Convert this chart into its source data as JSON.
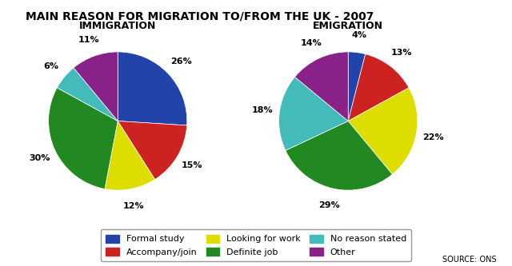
{
  "title": "MAIN REASON FOR MIGRATION TO/FROM THE UK - 2007",
  "immigration_title": "IMMIGRATION",
  "emigration_title": "EMIGRATION",
  "source": "SOURCE: ONS",
  "categories": [
    "Formal study",
    "Accompany/join",
    "Looking for work",
    "Definite job",
    "No reason stated",
    "Other"
  ],
  "colors": [
    "#2244aa",
    "#cc2222",
    "#dddd00",
    "#228822",
    "#44bbbb",
    "#882288"
  ],
  "immigration_values": [
    26,
    15,
    12,
    30,
    6,
    11
  ],
  "emigration_values": [
    4,
    13,
    22,
    29,
    18,
    14
  ],
  "immigration_labels": [
    "26%",
    "15%",
    "12%",
    "30%",
    "6%",
    "11%"
  ],
  "emigration_labels": [
    "4%",
    "13%",
    "22%",
    "29%",
    "18%",
    "14%"
  ],
  "startangle": 90
}
